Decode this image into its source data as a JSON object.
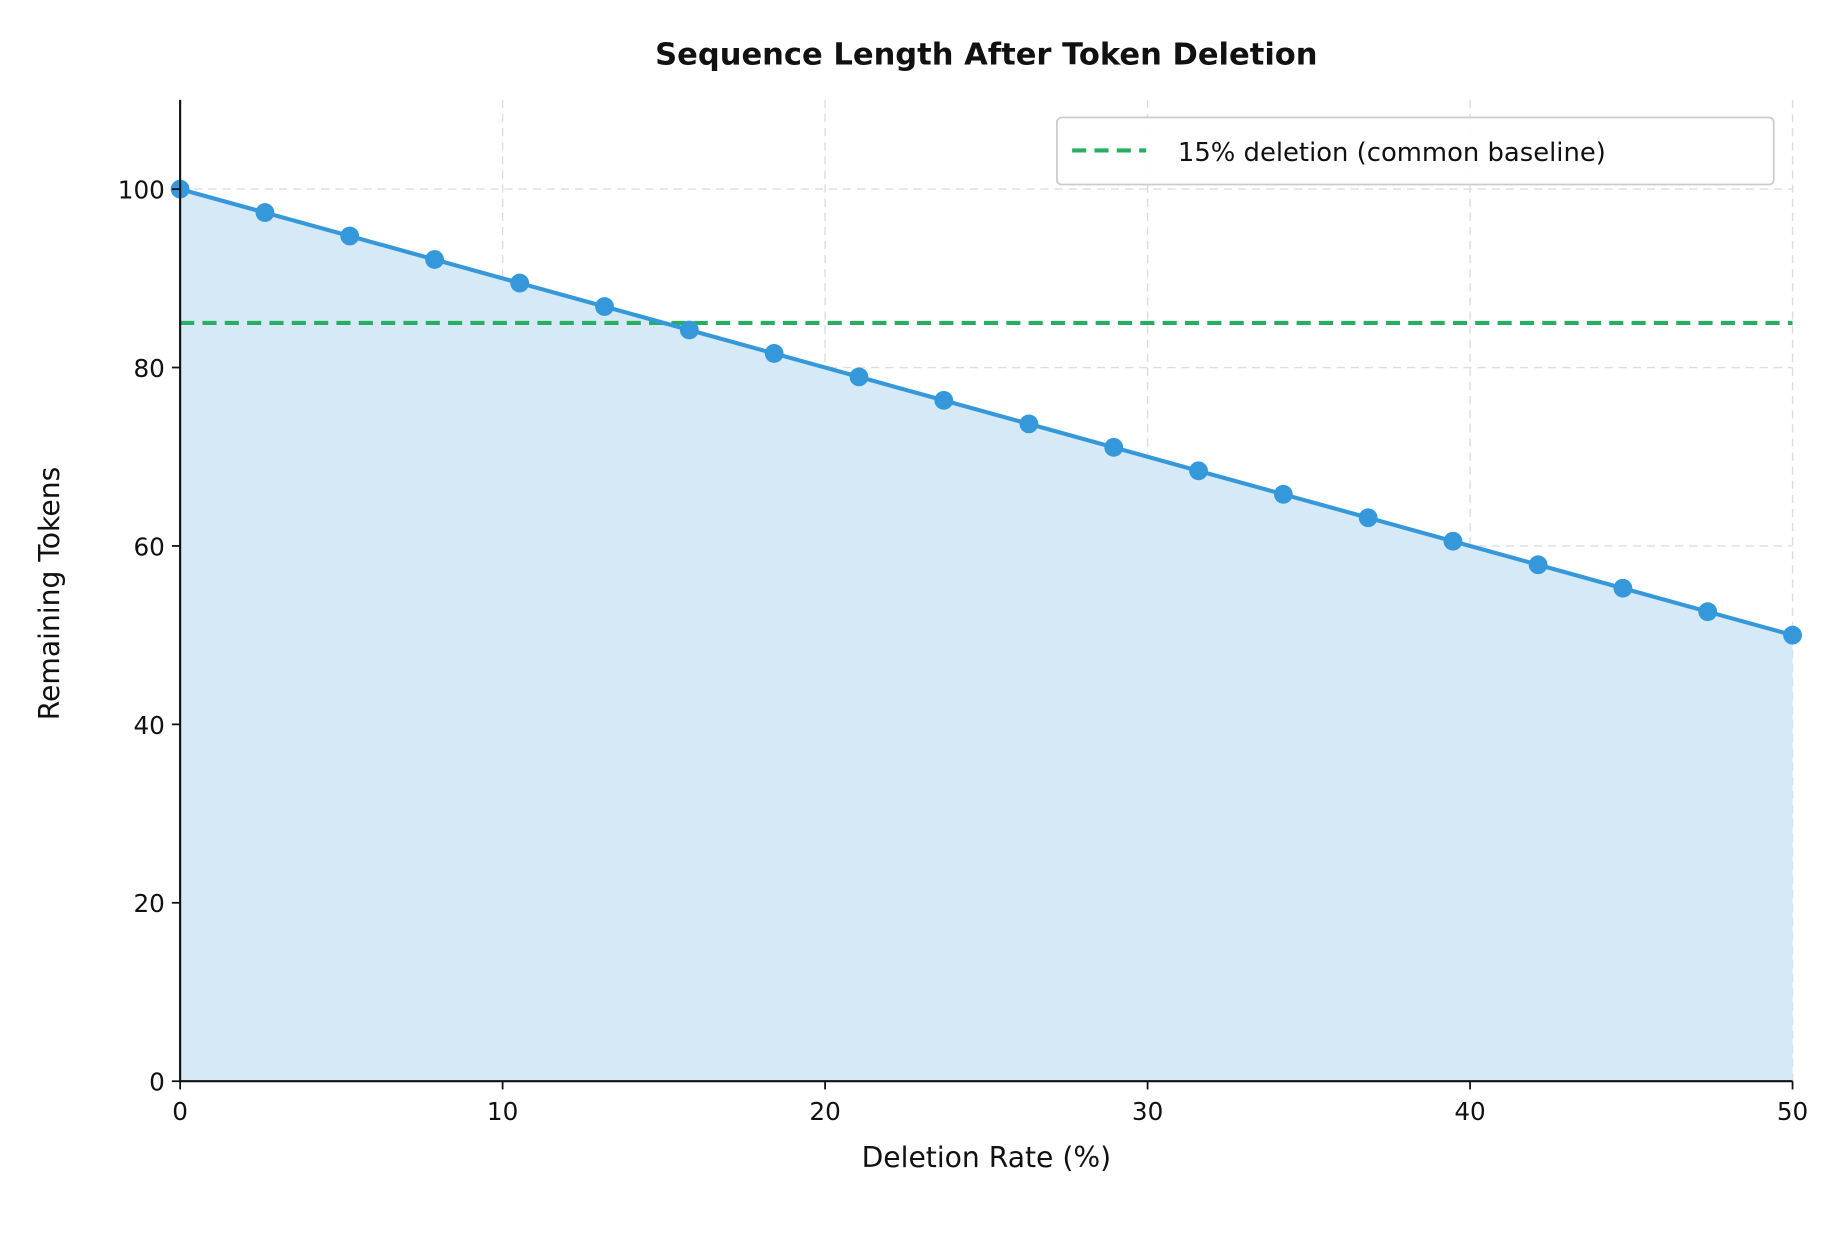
{
  "chart_data": {
    "type": "line",
    "title": "Sequence Length After Token Deletion",
    "xlabel": "Deletion Rate (%)",
    "ylabel": "Remaining Tokens",
    "xlim": [
      0,
      50
    ],
    "ylim": [
      0,
      110
    ],
    "xticks": [
      0,
      10,
      20,
      30,
      40,
      50
    ],
    "yticks": [
      0,
      20,
      40,
      60,
      80,
      100
    ],
    "grid": true,
    "legend_position": "top-right",
    "series": [
      {
        "name": "Remaining tokens",
        "color": "#3498db",
        "fill": "#d6e9f6",
        "x": [
          0,
          2.63,
          5.26,
          7.89,
          10.53,
          13.16,
          15.79,
          18.42,
          21.05,
          23.68,
          26.32,
          28.95,
          31.58,
          34.21,
          36.84,
          39.47,
          42.11,
          44.74,
          47.37,
          50
        ],
        "y": [
          100,
          97.37,
          94.74,
          92.11,
          89.47,
          86.84,
          84.21,
          81.58,
          78.95,
          76.32,
          73.68,
          71.05,
          68.42,
          65.79,
          63.16,
          60.53,
          57.89,
          55.26,
          52.63,
          50
        ]
      }
    ],
    "reference_line": {
      "label": "15% deletion (common baseline)",
      "y": 85,
      "color": "#27ae60",
      "style": "dashed"
    }
  }
}
